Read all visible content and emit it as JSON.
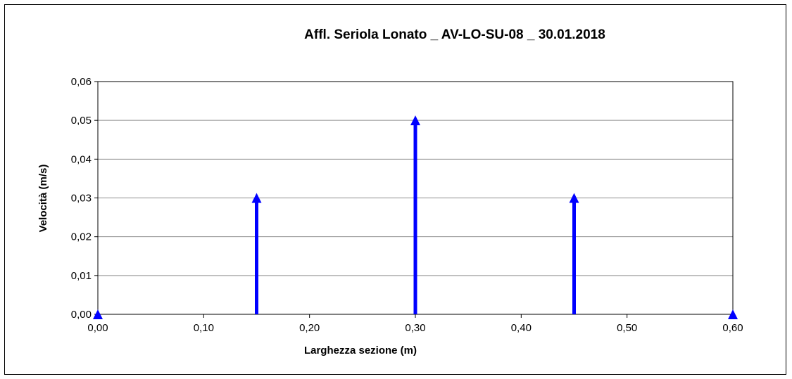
{
  "chart_data": {
    "type": "bar",
    "title": "Affl. Seriola Lonato _ AV-LO-SU-08 _ 30.01.2018",
    "xlabel": "Larghezza sezione (m)",
    "ylabel": "Velocità (m/s)",
    "xlim": [
      0,
      0.6
    ],
    "ylim": [
      0,
      0.06
    ],
    "x_ticks": [
      "0,00",
      "0,10",
      "0,20",
      "0,30",
      "0,40",
      "0,50",
      "0,60"
    ],
    "y_ticks": [
      "0,00",
      "0,01",
      "0,02",
      "0,03",
      "0,04",
      "0,05",
      "0,06"
    ],
    "x": [
      0.0,
      0.15,
      0.3,
      0.45,
      0.6
    ],
    "values": [
      0.0,
      0.03,
      0.05,
      0.03,
      0.0
    ],
    "grid": "horizontal",
    "legend": "none",
    "color": "#0000ff"
  }
}
